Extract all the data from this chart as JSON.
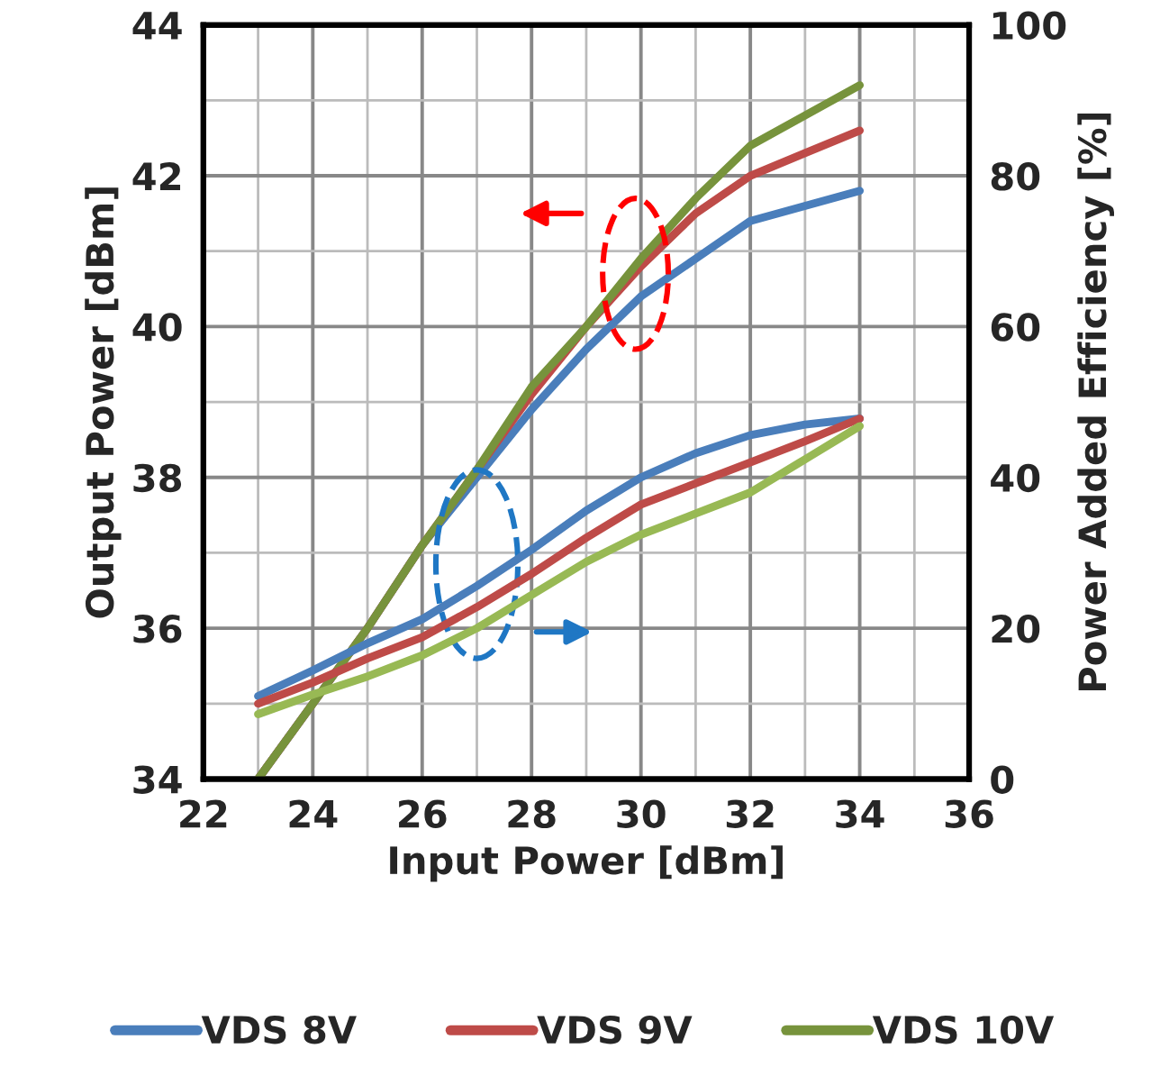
{
  "chart_data": {
    "type": "line",
    "xlabel": "Input Power [dBm]",
    "ylabel": "Output Power [dBm]",
    "y2label": "Power Added Efficiency [%]",
    "xlim": [
      22,
      36
    ],
    "xticks": [
      22,
      24,
      26,
      28,
      30,
      32,
      34,
      36
    ],
    "ylim": [
      34,
      44
    ],
    "yticks": [
      34,
      36,
      38,
      40,
      42,
      44
    ],
    "y2lim": [
      0,
      100
    ],
    "y2ticks": [
      0,
      20,
      40,
      60,
      80,
      100
    ],
    "grid": true,
    "legend": "bottom",
    "marker": "none",
    "line_style": "solid",
    "series": [
      {
        "name": "VDS 8V",
        "color": "#4a7ebb",
        "x": [
          23,
          24,
          25,
          26,
          27,
          28,
          29,
          30,
          31,
          32,
          33,
          34
        ],
        "values": [
          34.0,
          35.0,
          36.0,
          37.1,
          38.0,
          38.9,
          39.7,
          40.4,
          40.9,
          41.4,
          41.6,
          41.8
        ]
      },
      {
        "name": "VDS 9V",
        "color": "#be4b48",
        "x": [
          23,
          24,
          25,
          26,
          27,
          28,
          29,
          30,
          31,
          32,
          33,
          34
        ],
        "values": [
          34.0,
          35.0,
          36.0,
          37.1,
          38.1,
          39.1,
          40.0,
          40.8,
          41.5,
          42.0,
          42.3,
          42.6
        ]
      },
      {
        "name": "VDS 10V",
        "color": "#77933c",
        "x": [
          23,
          24,
          25,
          26,
          27,
          28,
          29,
          30,
          31,
          32,
          33,
          34
        ],
        "values": [
          34.0,
          35.0,
          36.0,
          37.1,
          38.1,
          39.2,
          40.0,
          40.9,
          41.7,
          42.4,
          42.8,
          43.2
        ]
      },
      {
        "color": "#4a7ebb",
        "axis": "y2",
        "x": [
          23,
          24,
          25,
          26,
          27,
          28,
          29,
          30,
          31,
          32,
          33,
          34
        ],
        "values": [
          11.0,
          14.4,
          18.0,
          21.2,
          25.6,
          30.4,
          35.6,
          40.0,
          43.2,
          45.6,
          47.0,
          47.8
        ]
      },
      {
        "color": "#be4b48",
        "axis": "y2",
        "x": [
          23,
          24,
          25,
          26,
          27,
          28,
          29,
          30,
          31,
          32,
          33,
          34
        ],
        "values": [
          10.0,
          12.8,
          16.0,
          18.8,
          22.8,
          27.2,
          32.0,
          36.4,
          39.2,
          42.0,
          44.8,
          47.8
        ]
      },
      {
        "color": "#98b954",
        "axis": "y2",
        "x": [
          23,
          24,
          25,
          26,
          27,
          28,
          29,
          30,
          31,
          32,
          33,
          34
        ],
        "values": [
          8.6,
          11.2,
          13.6,
          16.4,
          20.0,
          24.4,
          28.8,
          32.4,
          35.2,
          38.0,
          42.4,
          46.8
        ]
      }
    ]
  }
}
